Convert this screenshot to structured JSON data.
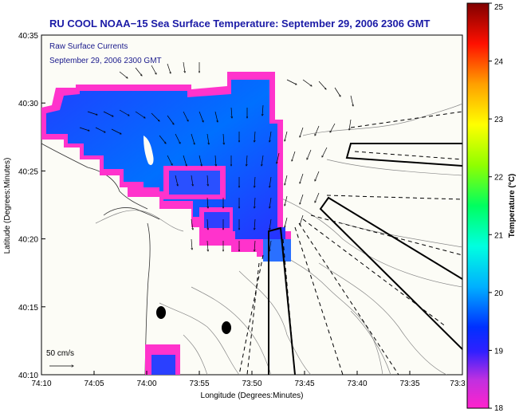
{
  "title": "RU COOL  NOAA−15  Sea Surface Temperature:  September 29, 2006 2306 GMT",
  "legend": {
    "line1": "Raw Surface Currents",
    "line2": "September 29, 2006 2300 GMT"
  },
  "scale_label": "50 cm/s",
  "x_axis": {
    "label": "Longitude (Degrees:Minutes)",
    "ticks": [
      "74:10",
      "74:05",
      "74:00",
      "73:55",
      "73:50",
      "73:45",
      "73:40",
      "73:35",
      "73:3"
    ]
  },
  "y_axis": {
    "label": "Latitude (Degrees:Minutes)",
    "ticks": [
      "40:35",
      "40:30",
      "40:25",
      "40:20",
      "40:15",
      "40:10"
    ]
  },
  "colorbar": {
    "label": "Temperature (°C)",
    "ticks": [
      "25",
      "24",
      "23",
      "22",
      "21",
      "20",
      "19",
      "18"
    ],
    "range": [
      18,
      25
    ],
    "colors": [
      "#ff22cc",
      "#8a2be2",
      "#0010ff",
      "#0080ff",
      "#00e0ff",
      "#00ff80",
      "#b0ff00",
      "#ffff00",
      "#ffa000",
      "#ff2000",
      "#8b0000"
    ]
  },
  "colors": {
    "land": "#fcfcf6",
    "title": "#1a1aa6",
    "sst_cool": "#ff33cc",
    "sst_warm": "#0044ff"
  }
}
